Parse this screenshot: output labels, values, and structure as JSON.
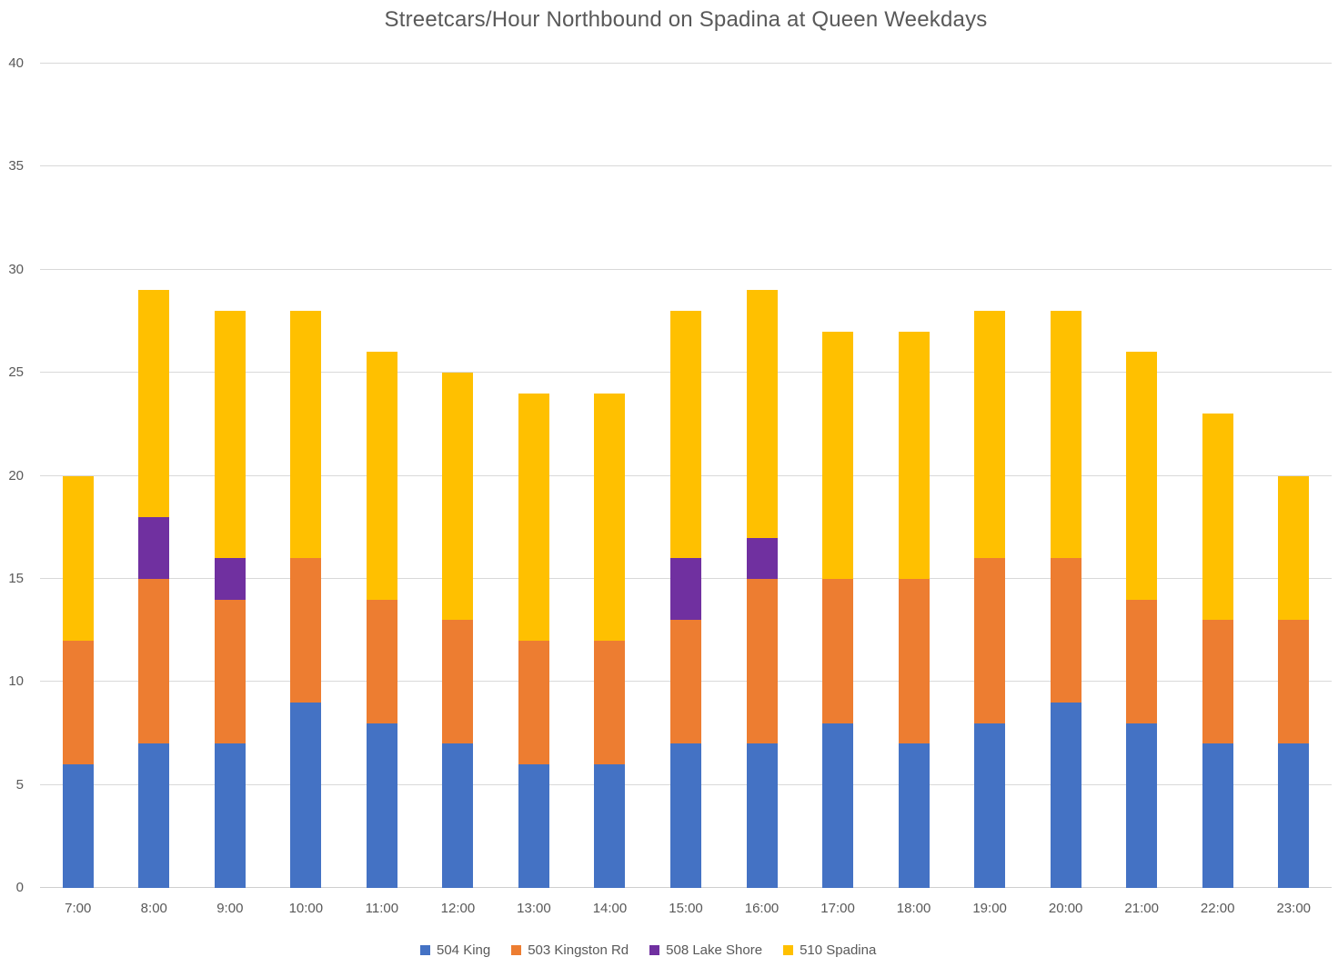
{
  "chart_data": {
    "type": "bar",
    "stacked": true,
    "title": "Streetcars/Hour Northbound on Spadina at Queen Weekdays",
    "xlabel": "",
    "ylabel": "",
    "categories": [
      "7:00",
      "8:00",
      "9:00",
      "10:00",
      "11:00",
      "12:00",
      "13:00",
      "14:00",
      "15:00",
      "16:00",
      "17:00",
      "18:00",
      "19:00",
      "20:00",
      "21:00",
      "22:00",
      "23:00"
    ],
    "series": [
      {
        "name": "504 King",
        "color": "#4472C4",
        "values": [
          6,
          7,
          7,
          9,
          8,
          7,
          6,
          6,
          7,
          7,
          8,
          7,
          8,
          9,
          8,
          7,
          7
        ]
      },
      {
        "name": "503 Kingston Rd",
        "color": "#ED7D31",
        "values": [
          6,
          8,
          7,
          7,
          6,
          6,
          6,
          6,
          6,
          8,
          7,
          8,
          8,
          7,
          6,
          6,
          6
        ]
      },
      {
        "name": "508 Lake Shore",
        "color": "#7030A0",
        "values": [
          0,
          3,
          2,
          0,
          0,
          0,
          0,
          0,
          3,
          2,
          0,
          0,
          0,
          0,
          0,
          0,
          0
        ]
      },
      {
        "name": "510 Spadina",
        "color": "#FFC000",
        "values": [
          8,
          11,
          12,
          12,
          12,
          12,
          12,
          12,
          12,
          12,
          12,
          12,
          12,
          12,
          12,
          10,
          7
        ]
      }
    ],
    "totals": [
      20,
      29,
      28,
      28,
      26,
      25,
      24,
      24,
      28,
      29,
      27,
      27,
      28,
      28,
      26,
      23,
      20
    ],
    "ylim": [
      0,
      40
    ],
    "yticks": [
      0,
      5,
      10,
      15,
      20,
      25,
      30,
      35,
      40
    ],
    "grid": true,
    "legend_position": "bottom",
    "gridline_color": "#D9D9D9",
    "axis_line_color": "#CFCFCF",
    "text_color": "#595959",
    "background_color": "#FFFFFF"
  }
}
